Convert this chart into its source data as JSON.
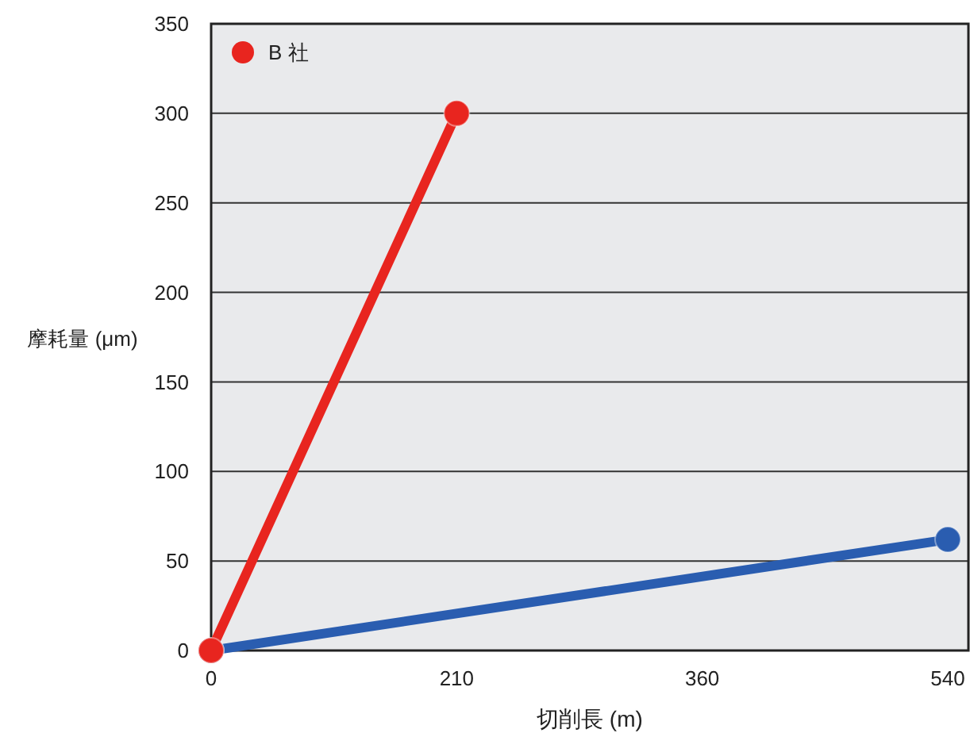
{
  "chart_data": {
    "type": "line",
    "xlabel": "切削長 (m)",
    "ylabel": "摩耗量 (μm)",
    "categories": [
      "0",
      "210",
      "360",
      "540"
    ],
    "series": [
      {
        "color": "#2a5db0",
        "values": [
          0,
          null,
          null,
          62
        ]
      },
      {
        "name": "B 社",
        "color": "#e8251f",
        "values": [
          0,
          300,
          null,
          null
        ]
      }
    ],
    "ylim": [
      0,
      350
    ],
    "yticks": [
      0,
      50,
      100,
      150,
      200,
      250,
      300,
      350
    ],
    "grid": "y",
    "legend": "top left",
    "marker": "circle",
    "line_style": "solid"
  }
}
